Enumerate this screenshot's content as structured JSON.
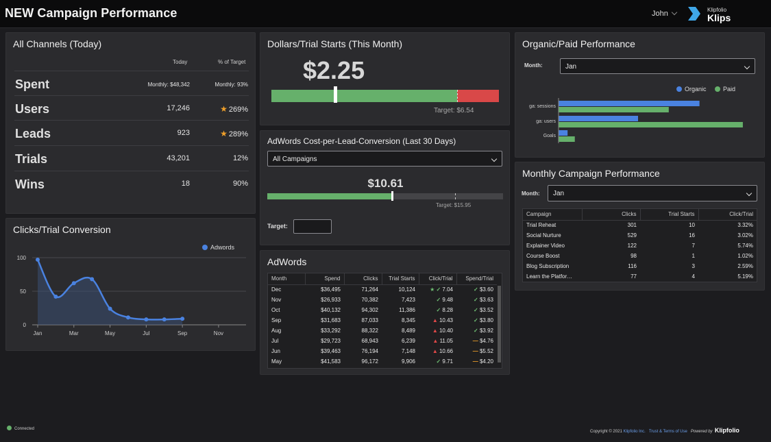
{
  "header": {
    "title": "NEW Campaign Performance",
    "user": "John",
    "logo_small": "Klipfolio",
    "logo_big": "Klips"
  },
  "colors": {
    "green": "#66b06b",
    "red": "#d94848",
    "blue": "#4a82e0",
    "star": "#f0a02a"
  },
  "all_channels": {
    "title": "All Channels (Today)",
    "col_today": "Today",
    "col_target": "% of Target",
    "rows": [
      {
        "label": "Spent",
        "today": "Monthly: $48,342",
        "target": "Monthly: 93%"
      },
      {
        "label": "Users",
        "today": "17,246",
        "target": "269%"
      },
      {
        "label": "Leads",
        "today": "923",
        "target": "289%"
      },
      {
        "label": "Trials",
        "today": "43,201",
        "target": "12%"
      },
      {
        "label": "Wins",
        "today": "18",
        "target": "90%"
      }
    ]
  },
  "dollars_trial": {
    "title": "Dollars/Trial Starts (This Month)",
    "value": "$2.25",
    "target": "Target: $6.54",
    "current": 2.25,
    "target_value": 6.54
  },
  "adwords_cpl": {
    "title": "AdWords Cost-per-Lead-Conversion (Last 30 Days)",
    "dropdown": "All Campaigns",
    "value": "$10.61",
    "target": "Target: $15.95",
    "target_label": "Target:",
    "input_value": ""
  },
  "adwords": {
    "title": "AdWords",
    "columns": [
      "Month",
      "Spend",
      "Clicks",
      "Trial Starts",
      "Click/Trial",
      "Spend/Trial"
    ],
    "rows": [
      {
        "month": "Dec",
        "spend": "$36,495",
        "clicks": "71,264",
        "trials": "10,124",
        "ct": "7.04",
        "ct_icon": "star-check",
        "st": "$3.60",
        "st_icon": "check"
      },
      {
        "month": "Nov",
        "spend": "$26,933",
        "clicks": "70,382",
        "trials": "7,423",
        "ct": "9.48",
        "ct_icon": "check",
        "st": "$3.63",
        "st_icon": "check"
      },
      {
        "month": "Oct",
        "spend": "$40,132",
        "clicks": "94,302",
        "trials": "11,386",
        "ct": "8.28",
        "ct_icon": "check",
        "st": "$3.52",
        "st_icon": "check"
      },
      {
        "month": "Sep",
        "spend": "$31,683",
        "clicks": "87,033",
        "trials": "8,345",
        "ct": "10.43",
        "ct_icon": "warning",
        "st": "$3.80",
        "st_icon": "check"
      },
      {
        "month": "Aug",
        "spend": "$33,292",
        "clicks": "88,322",
        "trials": "8,489",
        "ct": "10.40",
        "ct_icon": "warning",
        "st": "$3.92",
        "st_icon": "check"
      },
      {
        "month": "Jul",
        "spend": "$29,723",
        "clicks": "68,943",
        "trials": "6,239",
        "ct": "11.05",
        "ct_icon": "warning",
        "st": "$4.76",
        "st_icon": "dash"
      },
      {
        "month": "Jun",
        "spend": "$39,463",
        "clicks": "76,194",
        "trials": "7,148",
        "ct": "10.66",
        "ct_icon": "warning",
        "st": "$5.52",
        "st_icon": "dash"
      },
      {
        "month": "May",
        "spend": "$41,583",
        "clicks": "96,172",
        "trials": "9,906",
        "ct": "9.71",
        "ct_icon": "check",
        "st": "$4.20",
        "st_icon": "dash"
      }
    ]
  },
  "clicks_trial": {
    "title": "Clicks/Trial Conversion"
  },
  "organic_paid": {
    "title": "Organic/Paid Performance",
    "month_label": "Month:",
    "month": "Jan"
  },
  "monthly": {
    "title": "Monthly Campaign Performance",
    "month_label": "Month:",
    "month": "Jan",
    "columns": [
      "Campaign",
      "Clicks",
      "Trial Starts",
      "Click/Trial"
    ],
    "rows": [
      {
        "campaign": "Trial Reheat",
        "clicks": "301",
        "trials": "10",
        "ct": "3.32%"
      },
      {
        "campaign": "Social Nurture",
        "clicks": "529",
        "trials": "16",
        "ct": "3.02%"
      },
      {
        "campaign": "Explainer Video",
        "clicks": "122",
        "trials": "7",
        "ct": "5.74%"
      },
      {
        "campaign": "Course Boost",
        "clicks": "98",
        "trials": "1",
        "ct": "1.02%"
      },
      {
        "campaign": "Blog Subscription",
        "clicks": "116",
        "trials": "3",
        "ct": "2.59%"
      },
      {
        "campaign": "Learn the Platfor…",
        "clicks": "77",
        "trials": "4",
        "ct": "5.19%"
      }
    ]
  },
  "chart_data": [
    {
      "type": "line",
      "title": "Clicks/Trial Conversion",
      "x": [
        "Jan",
        "Feb",
        "Mar",
        "Apr",
        "May",
        "Jun",
        "Jul",
        "Aug",
        "Sep"
      ],
      "xticks": [
        "Jan",
        "Mar",
        "May",
        "Jul",
        "Sep",
        "Nov"
      ],
      "xlim_months": 12,
      "series": [
        {
          "name": "Adwords",
          "values": [
            97,
            42,
            62,
            68,
            24,
            11,
            8,
            8,
            9
          ]
        }
      ],
      "ylim": [
        0,
        100
      ],
      "yticks": [
        0,
        50,
        100
      ],
      "legend": "top-right"
    },
    {
      "type": "bar",
      "orientation": "horizontal",
      "title": "Organic/Paid Performance",
      "categories": [
        "ga: sessions",
        "ga: users",
        "Goals"
      ],
      "series": [
        {
          "name": "Organic",
          "values": [
            78,
            44,
            5
          ]
        },
        {
          "name": "Paid",
          "values": [
            61,
            102,
            9
          ]
        }
      ],
      "xlim": [
        0,
        110
      ],
      "legend": "top-right"
    }
  ],
  "footer": {
    "status": "Connected",
    "copyright": "Copyright © 2021",
    "company": "Klipfolio Inc.",
    "terms": "Trust & Terms of Use",
    "powered": "Powered by",
    "brand": "Klipfolio"
  }
}
